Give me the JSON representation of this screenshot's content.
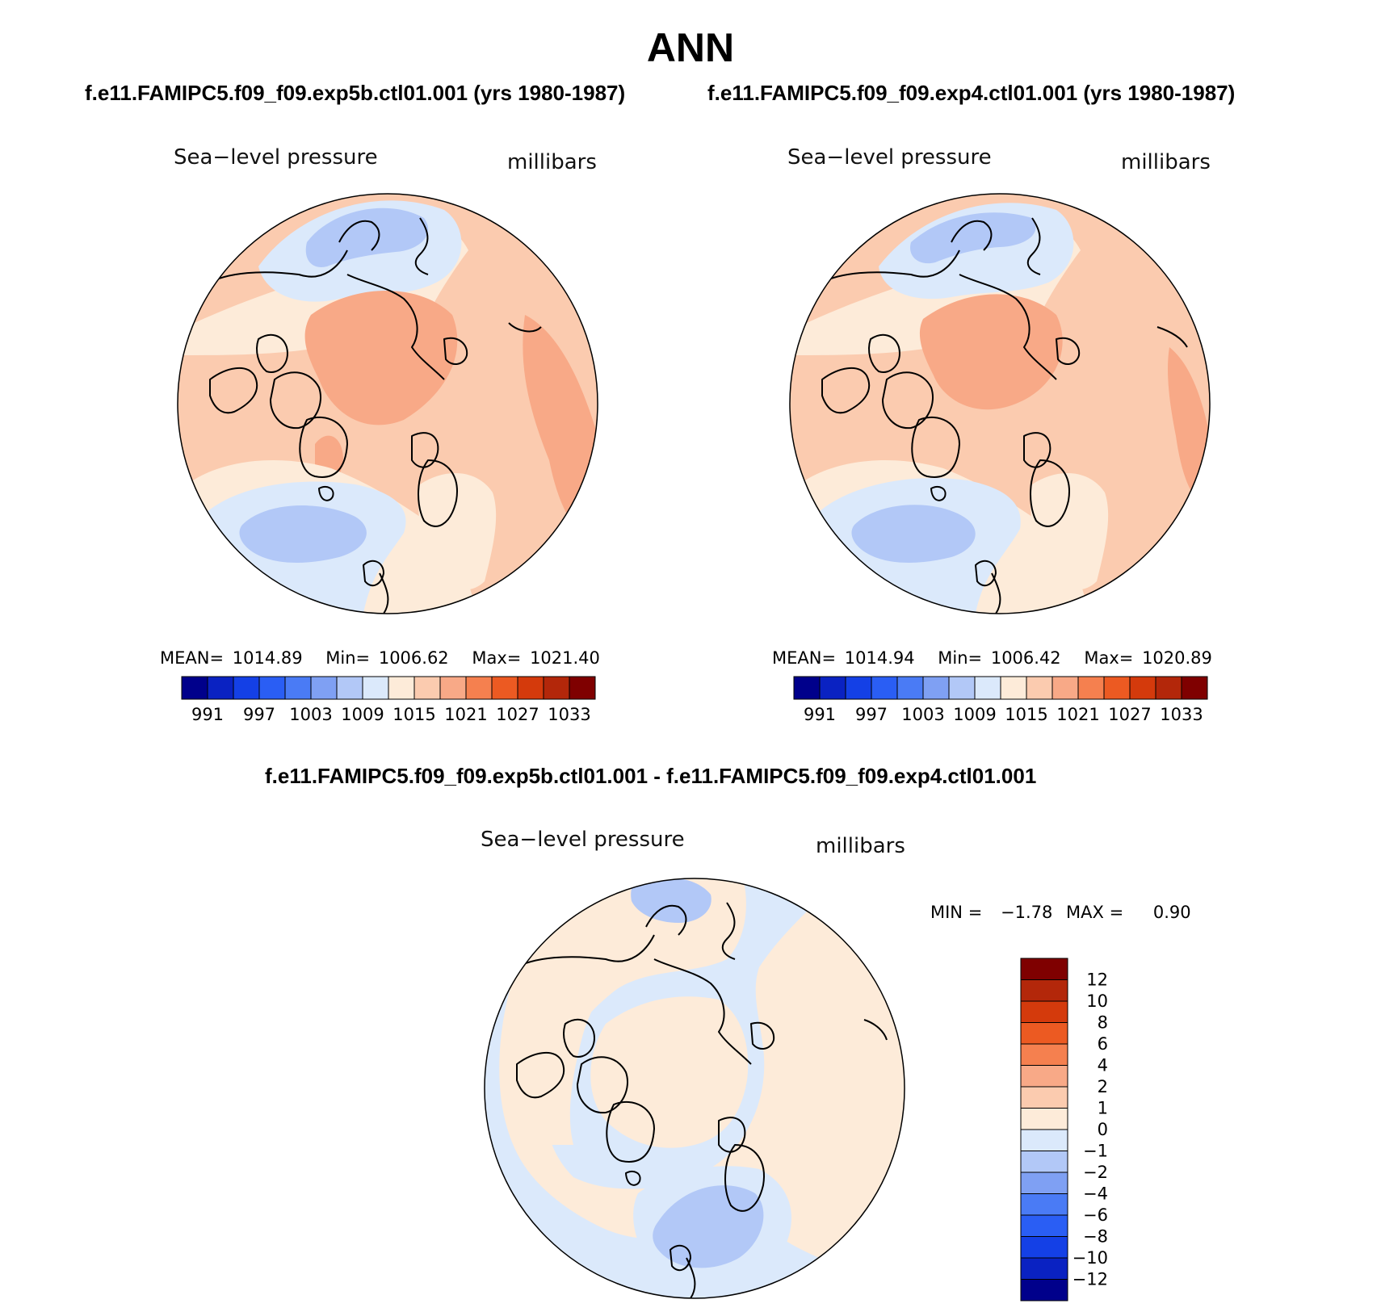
{
  "title": "ANN",
  "panels": [
    {
      "case": "f.e11.FAMIPC5.f09_f09.exp5b.ctl01.001 (yrs 1980-1987)",
      "variable": "Sea−level pressure",
      "units": "millibars",
      "mean_label": "MEAN=",
      "mean": "1014.89",
      "min_label": "Min=",
      "min": "1006.62",
      "max_label": "Max=",
      "max": "1021.40"
    },
    {
      "case": "f.e11.FAMIPC5.f09_f09.exp4.ctl01.001 (yrs 1980-1987)",
      "variable": "Sea−level pressure",
      "units": "millibars",
      "mean_label": "MEAN=",
      "mean": "1014.94",
      "min_label": "Min=",
      "min": "1006.42",
      "max_label": "Max=",
      "max": "1020.89"
    }
  ],
  "difference": {
    "title": "f.e11.FAMIPC5.f09_f09.exp5b.ctl01.001 - f.e11.FAMIPC5.f09_f09.exp4.ctl01.001",
    "variable": "Sea−level pressure",
    "units": "millibars",
    "min_label": "MIN =",
    "min": "−1.78",
    "max_label": "MAX =",
    "max": "0.90"
  },
  "colorbar_abs": {
    "colors": [
      "#00008b",
      "#0a22c2",
      "#1440e6",
      "#2a5ef4",
      "#4a7bf5",
      "#7fa0f3",
      "#b2c8f7",
      "#dbe9fb",
      "#fdebd9",
      "#fbcbaf",
      "#f8a987",
      "#f5804f",
      "#ec5a22",
      "#d43a0c",
      "#b3270a",
      "#7f0000"
    ],
    "tick_labels": [
      "991",
      "997",
      "1003",
      "1009",
      "1015",
      "1021",
      "1027",
      "1033"
    ]
  },
  "colorbar_diff": {
    "colors": [
      "#7f0000",
      "#b3270a",
      "#d43a0c",
      "#ec5a22",
      "#f5804f",
      "#f8a987",
      "#fbcbaf",
      "#fdebd9",
      "#dbe9fb",
      "#b2c8f7",
      "#7fa0f3",
      "#4a7bf5",
      "#2a5ef4",
      "#1440e6",
      "#0a22c2",
      "#00008b"
    ],
    "tick_labels": [
      "12",
      "10",
      "8",
      "6",
      "4",
      "2",
      "1",
      "0",
      "−1",
      "−2",
      "−4",
      "−6",
      "−8",
      "−10",
      "−12"
    ]
  },
  "map_colors": {
    "blue_light": "#dbe9fb",
    "blue_mid": "#b2c8f7",
    "cream": "#fdebd9",
    "peach": "#fbcbaf",
    "salmon": "#f8a987"
  }
}
